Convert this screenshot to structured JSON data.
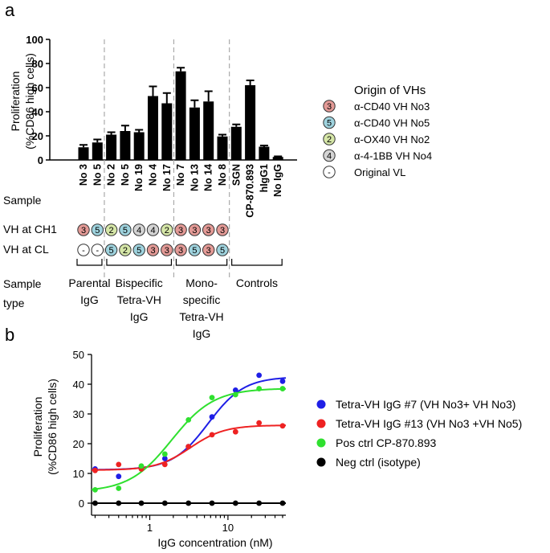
{
  "panel_a": {
    "label": "a",
    "y_axis_label_line1": "Proliferation",
    "y_axis_label_line2": "(%CD86 high cells)",
    "sample_row_label": "Sample",
    "ch1_row_label": "VH at CH1",
    "cl_row_label": "VH at CL",
    "sample_type_label_line1": "Sample",
    "sample_type_label_line2": "type",
    "groups": [
      {
        "lines": [
          "Parental",
          "IgG"
        ]
      },
      {
        "lines": [
          "Bispecific",
          "Tetra-VH",
          "IgG"
        ]
      },
      {
        "lines": [
          "Mono-",
          "specific",
          "Tetra-VH",
          "IgG"
        ]
      },
      {
        "lines": [
          "Controls"
        ]
      }
    ],
    "legend_title": "Origin of VHs",
    "legend": [
      {
        "code": "3",
        "label": "α-CD40 VH No3",
        "color": "#e39a96"
      },
      {
        "code": "5",
        "label": "α-CD40 VH No5",
        "color": "#9fd3de"
      },
      {
        "code": "2",
        "label": "α-OX40 VH No2",
        "color": "#d6e7a8"
      },
      {
        "code": "4",
        "label": "α-4-1BB VH No4",
        "color": "#d4d4d4"
      },
      {
        "code": "-",
        "label": "Original  VL",
        "color": "#ffffff"
      }
    ],
    "ch1": [
      "3",
      "5",
      "2",
      "5",
      "4",
      "4",
      "2",
      "3",
      "3",
      "3",
      "3",
      "",
      "",
      "",
      ""
    ],
    "cl": [
      "-",
      "-",
      "5",
      "2",
      "5",
      "3",
      "3",
      "3",
      "5",
      "3",
      "5",
      "",
      "",
      "",
      ""
    ]
  },
  "panel_b": {
    "label": "b",
    "y_axis_label_line1": "Proliferation",
    "y_axis_label_line2": "(%CD86 high cells)",
    "x_axis_label": "IgG concentration (nM)"
  },
  "chart_data": [
    {
      "type": "bar",
      "categories": [
        "No 3",
        "No 5",
        "No 2",
        "No 5",
        "No 19",
        "No 4",
        "No 17",
        "No 7",
        "No 13",
        "No 14",
        "No 8",
        "SGN",
        "CP-870.893",
        "hIgG1",
        "No IgG"
      ],
      "values": [
        10.5,
        14.5,
        21,
        24,
        23,
        53,
        47,
        73.5,
        43.5,
        48.5,
        19.5,
        27.5,
        62,
        11,
        2.5
      ],
      "errors": [
        2,
        2.5,
        2,
        4.5,
        2,
        8,
        8.5,
        3,
        6,
        8.5,
        1.5,
        2,
        4,
        1,
        0.5
      ],
      "ylim": [
        0,
        100
      ],
      "yticks": [
        0,
        20,
        40,
        60,
        80,
        100
      ],
      "group_dividers_after": [
        1,
        6,
        10
      ]
    },
    {
      "type": "scatter",
      "x_scale": "log",
      "xlim": [
        0.18,
        55
      ],
      "ylim": [
        0,
        50
      ],
      "yticks": [
        0,
        10,
        20,
        30,
        40,
        50
      ],
      "xticks": [
        1,
        10
      ],
      "xtick_labels": [
        "1",
        "10"
      ],
      "legend_placement": "right",
      "x": [
        0.2,
        0.4,
        0.78,
        1.56,
        3.125,
        6.25,
        12.5,
        25,
        50
      ],
      "series": [
        {
          "name": "Tetra-VH IgG #7 (VH No3+ VH No3)",
          "color": "#1f1fe6",
          "values": [
            11.5,
            9,
            12,
            15,
            19,
            29,
            38,
            43,
            41
          ],
          "fit": {
            "bottom": 11.2,
            "top": 42.5,
            "ec50": 5.6,
            "hill": 1.9
          }
        },
        {
          "name": "Tetra-VH IgG #13 (VH No3 +VH No5)",
          "color": "#ee2222",
          "values": [
            11,
            13,
            11.5,
            13,
            19,
            23,
            24,
            27,
            26
          ],
          "fit": {
            "bottom": 11.1,
            "top": 26.2,
            "ec50": 3.3,
            "hill": 2.0
          }
        },
        {
          "name": "Pos ctrl CP-870.893",
          "color": "#2fe02f",
          "values": [
            4.5,
            5,
            12.5,
            16.5,
            28,
            35.5,
            36.5,
            38.5,
            38.5
          ],
          "fit": {
            "bottom": 3.8,
            "top": 38.6,
            "ec50": 1.9,
            "hill": 1.6
          }
        },
        {
          "name": "Neg ctrl (isotype)",
          "color": "#000000",
          "values": [
            0,
            0,
            0,
            0,
            0,
            0,
            0,
            0,
            0
          ],
          "fit": {
            "flat": 0
          }
        }
      ]
    }
  ]
}
